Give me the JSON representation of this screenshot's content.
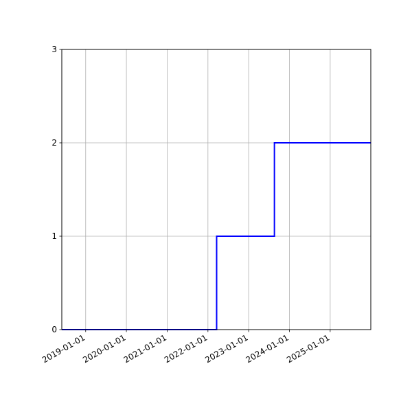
{
  "chart_data": {
    "type": "line",
    "step": true,
    "title": "",
    "xlabel": "",
    "ylabel": "",
    "xlim": [
      "2018-06-01",
      "2025-12-31"
    ],
    "ylim": [
      0,
      3
    ],
    "x_ticks": [
      "2019-01-01",
      "2020-01-01",
      "2021-01-01",
      "2022-01-01",
      "2023-01-01",
      "2024-01-01",
      "2025-01-01"
    ],
    "y_ticks": [
      0,
      1,
      2,
      3
    ],
    "grid": true,
    "series": [
      {
        "color": "#0000ff",
        "points": [
          {
            "x": "2018-06-01",
            "y": 0
          },
          {
            "x": "2022-03-20",
            "y": 0
          },
          {
            "x": "2022-03-20",
            "y": 1
          },
          {
            "x": "2023-08-20",
            "y": 1
          },
          {
            "x": "2023-08-20",
            "y": 2
          },
          {
            "x": "2023-08-24",
            "y": 2
          },
          {
            "x": "2025-12-31",
            "y": 2
          }
        ]
      }
    ]
  }
}
